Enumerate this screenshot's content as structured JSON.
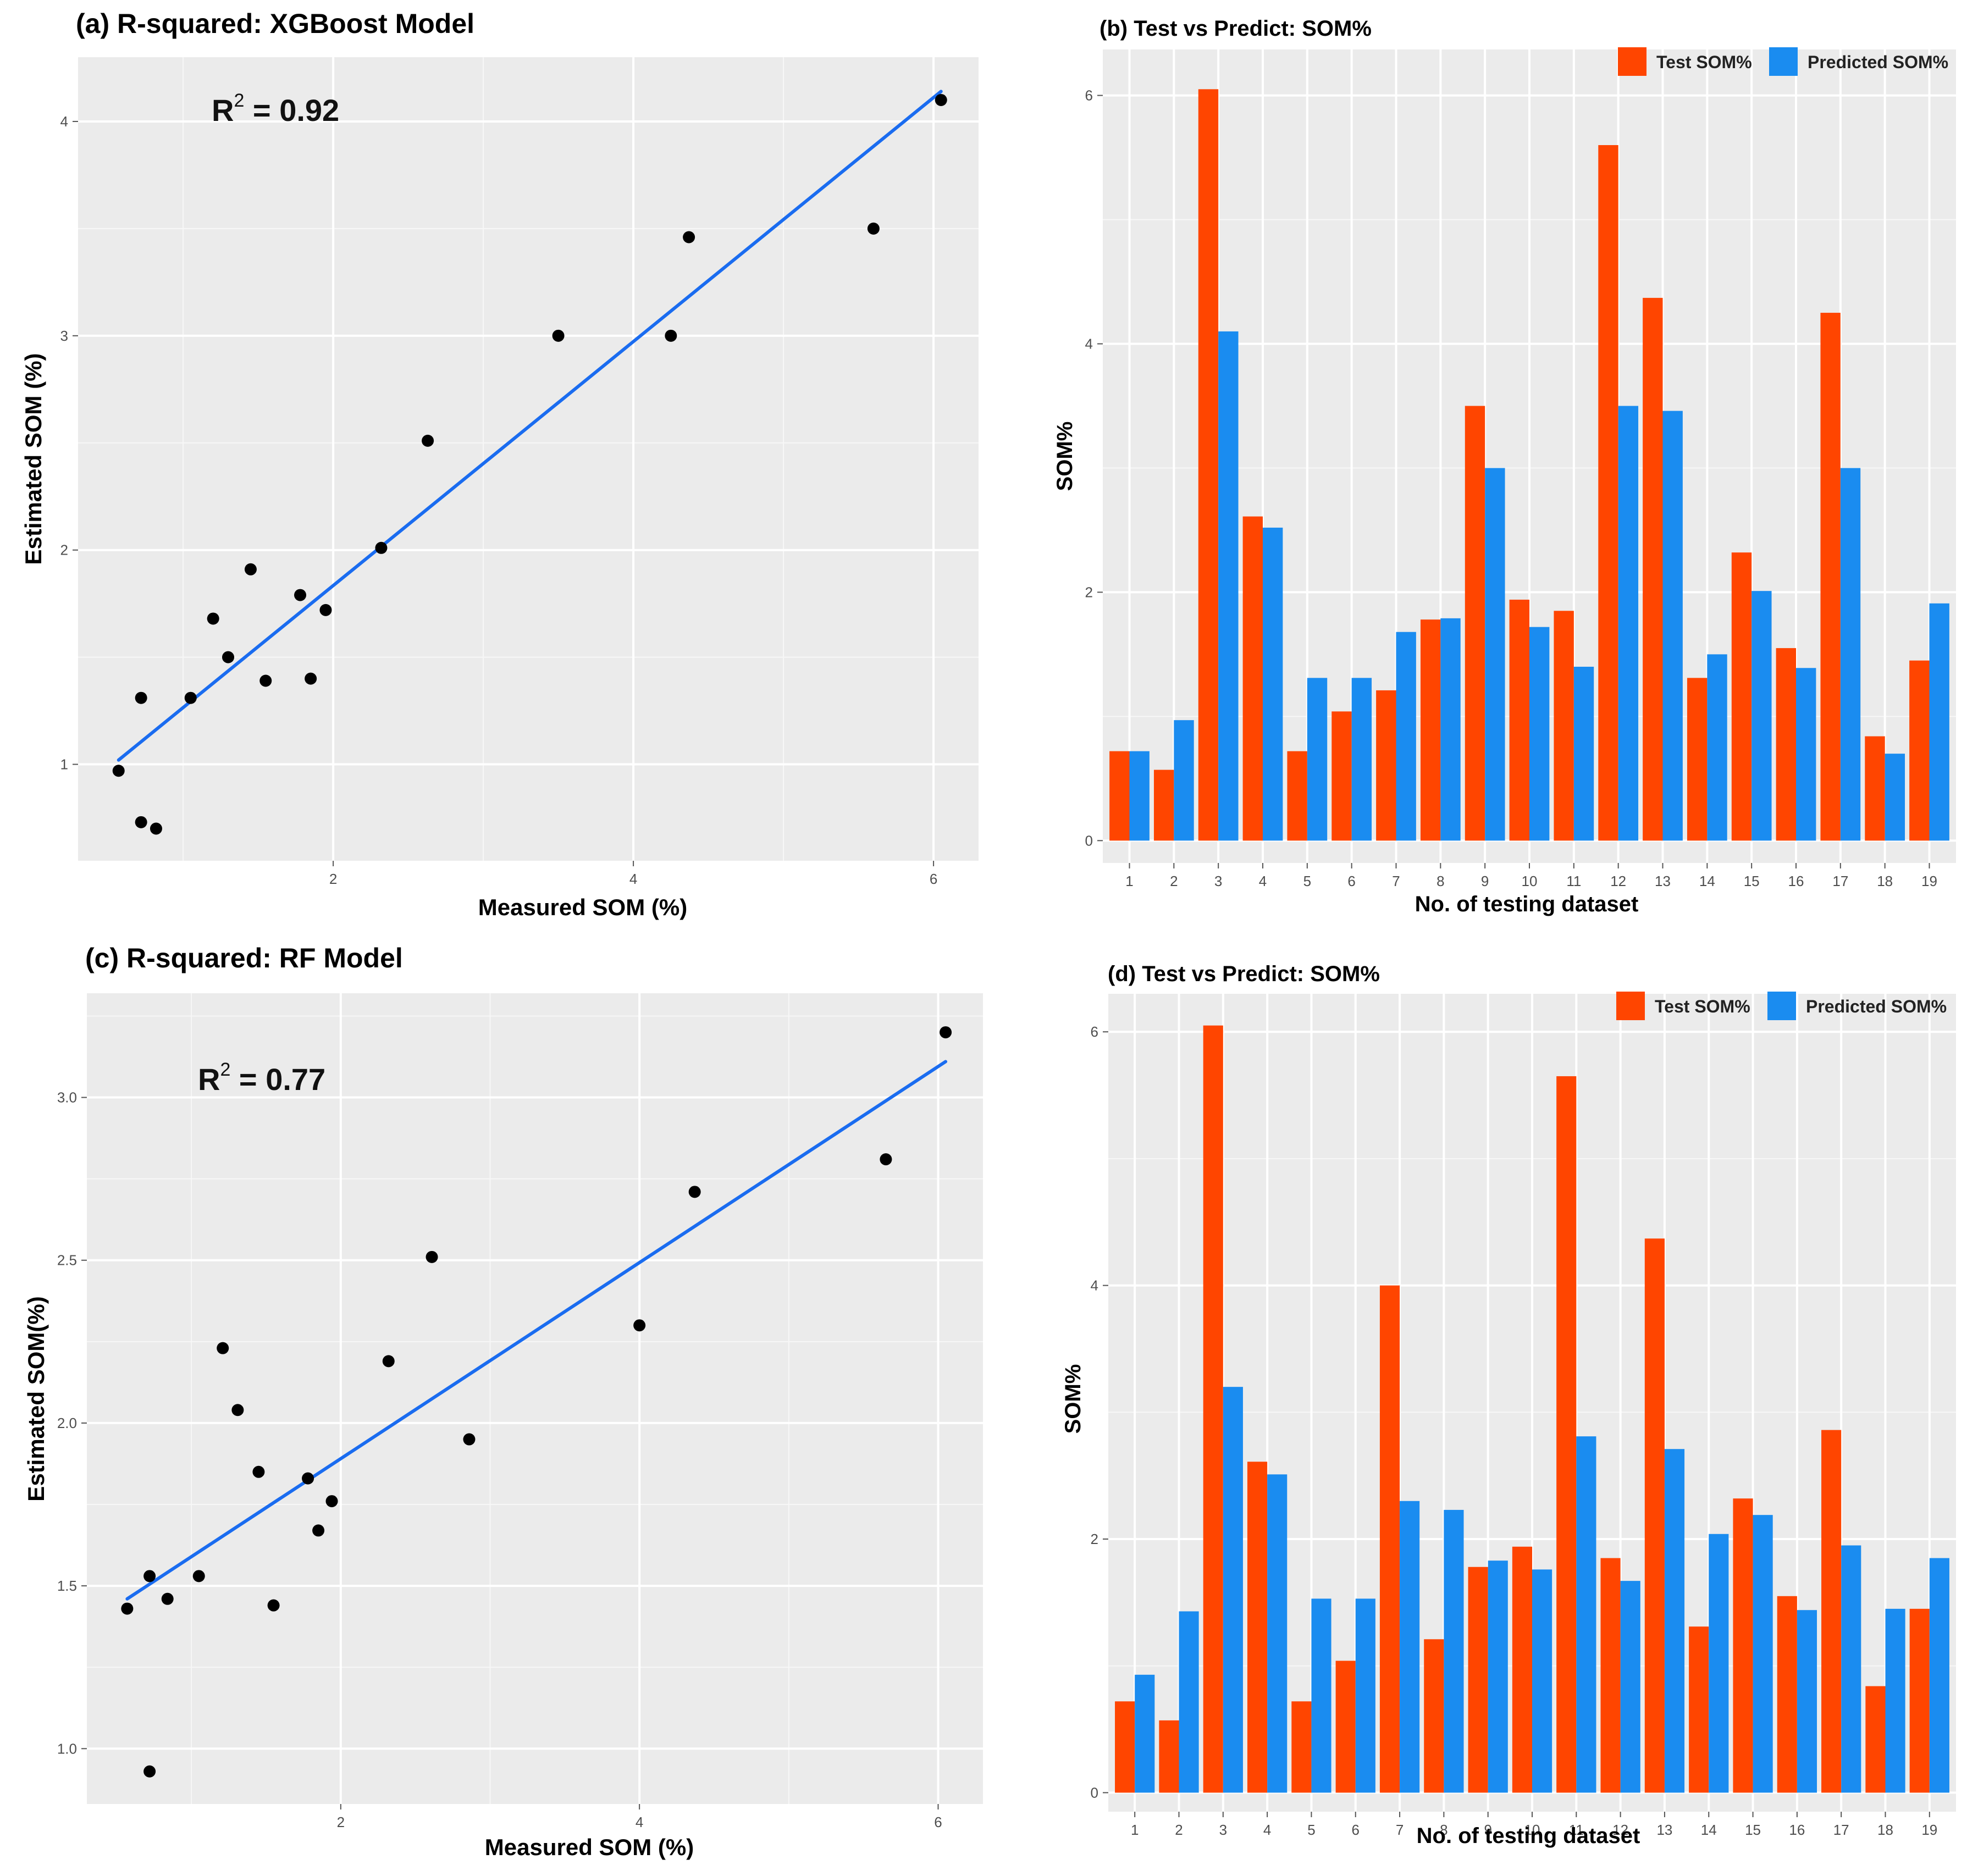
{
  "chart_data": [
    {
      "id": "a",
      "type": "scatter",
      "title": "(a) R-squared: XGBoost Model",
      "xlabel": "Measured SOM (%)",
      "ylabel": "Estimated SOM (%)",
      "annotation": {
        "base": "R",
        "sup": "2",
        "rest": " = 0.92"
      },
      "xlim": [
        0.3,
        6.3
      ],
      "ylim": [
        0.55,
        4.3
      ],
      "xticks": [
        2,
        4,
        6
      ],
      "xtick_labels": [
        "2",
        "4",
        "6"
      ],
      "yticks": [
        1,
        2,
        3,
        4
      ],
      "ytick_labels": [
        "1",
        "2",
        "3",
        "4"
      ],
      "grid": true,
      "point_color": "#000000",
      "line_color": "#1a6cf0",
      "points": [
        {
          "x": 0.57,
          "y": 0.97
        },
        {
          "x": 0.72,
          "y": 1.31
        },
        {
          "x": 0.72,
          "y": 0.73
        },
        {
          "x": 0.82,
          "y": 0.7
        },
        {
          "x": 1.05,
          "y": 1.31
        },
        {
          "x": 1.2,
          "y": 1.68
        },
        {
          "x": 1.3,
          "y": 1.5
        },
        {
          "x": 1.45,
          "y": 1.91
        },
        {
          "x": 1.55,
          "y": 1.39
        },
        {
          "x": 1.78,
          "y": 1.79
        },
        {
          "x": 1.85,
          "y": 1.4
        },
        {
          "x": 1.95,
          "y": 1.72
        },
        {
          "x": 2.32,
          "y": 2.01
        },
        {
          "x": 2.63,
          "y": 2.51
        },
        {
          "x": 3.5,
          "y": 3.0
        },
        {
          "x": 4.25,
          "y": 3.0
        },
        {
          "x": 4.37,
          "y": 3.46
        },
        {
          "x": 5.6,
          "y": 3.5
        },
        {
          "x": 6.05,
          "y": 4.1
        }
      ],
      "fit_line": {
        "x": [
          0.57,
          6.05
        ],
        "y": [
          1.02,
          4.14
        ]
      }
    },
    {
      "id": "b",
      "type": "bar",
      "title": "(b) Test vs Predict: SOM%",
      "xlabel": "No. of testing dataset",
      "ylabel": "SOM%",
      "ylim": [
        -0.18,
        6.37
      ],
      "yticks": [
        0,
        2,
        4,
        6
      ],
      "ytick_labels": [
        "0",
        "2",
        "4",
        "6"
      ],
      "grid": true,
      "legend_position": "top-right",
      "categories": [
        "1",
        "2",
        "3",
        "4",
        "5",
        "6",
        "7",
        "8",
        "9",
        "10",
        "11",
        "12",
        "13",
        "14",
        "15",
        "16",
        "17",
        "18",
        "19"
      ],
      "series": [
        {
          "name": "Test SOM%",
          "color": "#ff4500",
          "values": [
            0.72,
            0.57,
            6.05,
            2.61,
            0.72,
            1.04,
            1.21,
            1.78,
            3.5,
            1.94,
            1.85,
            5.6,
            4.37,
            1.31,
            2.32,
            1.55,
            4.25,
            0.84,
            1.45
          ]
        },
        {
          "name": "Predicted SOM%",
          "color": "#1a8cf0",
          "values": [
            0.72,
            0.97,
            4.1,
            2.52,
            1.31,
            1.31,
            1.68,
            1.79,
            3.0,
            1.72,
            1.4,
            3.5,
            3.46,
            1.5,
            2.01,
            1.39,
            3.0,
            0.7,
            1.91
          ]
        }
      ]
    },
    {
      "id": "c",
      "type": "scatter",
      "title": "(c) R-squared: RF Model",
      "xlabel": "Measured SOM (%)",
      "ylabel": "Estimated SOM(%)",
      "annotation": {
        "base": "R",
        "sup": "2",
        "rest": " = 0.77"
      },
      "xlim": [
        0.3,
        6.3
      ],
      "ylim": [
        0.83,
        3.32
      ],
      "xticks": [
        2,
        4,
        6
      ],
      "xtick_labels": [
        "2",
        "4",
        "6"
      ],
      "yticks": [
        1.0,
        1.5,
        2.0,
        2.5,
        3.0
      ],
      "ytick_labels": [
        "1.0",
        "1.5",
        "2.0",
        "2.5",
        "3.0"
      ],
      "grid": true,
      "point_color": "#000000",
      "line_color": "#1a6cf0",
      "points": [
        {
          "x": 0.57,
          "y": 1.43
        },
        {
          "x": 0.72,
          "y": 1.53
        },
        {
          "x": 0.72,
          "y": 0.93
        },
        {
          "x": 0.84,
          "y": 1.46
        },
        {
          "x": 1.05,
          "y": 1.53
        },
        {
          "x": 1.21,
          "y": 2.23
        },
        {
          "x": 1.31,
          "y": 2.04
        },
        {
          "x": 1.45,
          "y": 1.85
        },
        {
          "x": 1.55,
          "y": 1.44
        },
        {
          "x": 1.78,
          "y": 1.83
        },
        {
          "x": 1.85,
          "y": 1.67
        },
        {
          "x": 1.94,
          "y": 1.76
        },
        {
          "x": 2.32,
          "y": 2.19
        },
        {
          "x": 2.61,
          "y": 2.51
        },
        {
          "x": 2.86,
          "y": 1.95
        },
        {
          "x": 4.0,
          "y": 2.3
        },
        {
          "x": 4.37,
          "y": 2.71
        },
        {
          "x": 5.65,
          "y": 2.81
        },
        {
          "x": 6.05,
          "y": 3.2
        }
      ],
      "fit_line": {
        "x": [
          0.57,
          6.05
        ],
        "y": [
          1.46,
          3.11
        ]
      }
    },
    {
      "id": "d",
      "type": "bar",
      "title": "(d) Test vs Predict: SOM%",
      "xlabel": "No. of testing dataset",
      "ylabel": "SOM%",
      "ylim": [
        -0.15,
        6.3
      ],
      "yticks": [
        0,
        2,
        4,
        6
      ],
      "ytick_labels": [
        "0",
        "2",
        "4",
        "6"
      ],
      "grid": true,
      "legend_position": "top-right",
      "categories": [
        "1",
        "2",
        "3",
        "4",
        "5",
        "6",
        "7",
        "8",
        "9",
        "10",
        "11",
        "12",
        "13",
        "14",
        "15",
        "16",
        "17",
        "18",
        "19"
      ],
      "series": [
        {
          "name": "Test SOM%",
          "color": "#ff4500",
          "values": [
            0.72,
            0.57,
            6.05,
            2.61,
            0.72,
            1.04,
            4.0,
            1.21,
            1.78,
            1.94,
            5.65,
            1.85,
            4.37,
            1.31,
            2.32,
            1.55,
            2.86,
            0.84,
            1.45
          ]
        },
        {
          "name": "Predicted SOM%",
          "color": "#1a8cf0",
          "values": [
            0.93,
            1.43,
            3.2,
            2.51,
            1.53,
            1.53,
            2.3,
            2.23,
            1.83,
            1.76,
            2.81,
            1.67,
            2.71,
            2.04,
            2.19,
            1.44,
            1.95,
            1.45,
            1.85
          ]
        }
      ]
    }
  ]
}
